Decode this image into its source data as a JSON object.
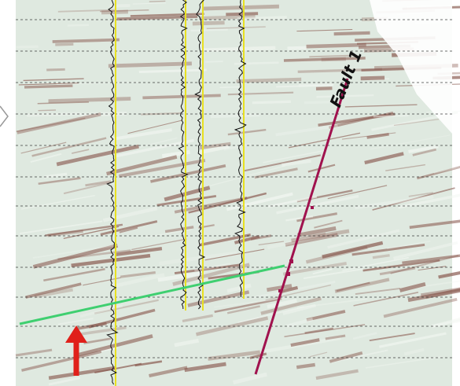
{
  "annotations": {
    "fault_label": "Fault 1"
  }
}
